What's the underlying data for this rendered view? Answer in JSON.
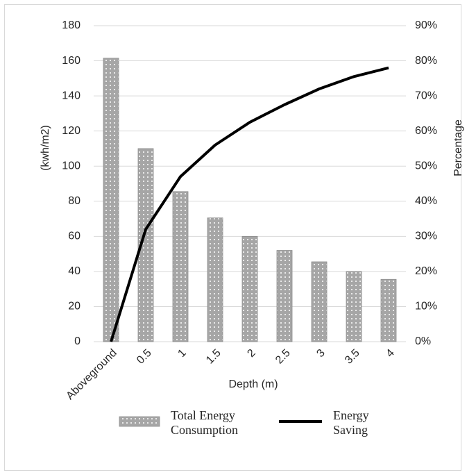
{
  "chart_data": {
    "type": "bar",
    "categories": [
      "Aboveground",
      "0.5",
      "1",
      "1.5",
      "2",
      "2.5",
      "3",
      "3.5",
      "4"
    ],
    "x_label": "Depth (m)",
    "y_label": "(kwh/m2)",
    "y2_label": "Percentage",
    "series": [
      {
        "name": "Total Energy Consumption",
        "type": "bar",
        "color": "#a6a6a6",
        "values": [
          161.5,
          110,
          85.5,
          70.5,
          60,
          52,
          45.5,
          40,
          35.5
        ]
      },
      {
        "name": "Energy Saving",
        "type": "line",
        "color": "#000000",
        "axis": "y2",
        "values": [
          0,
          32,
          47,
          56,
          62.5,
          67.5,
          72,
          75.5,
          78
        ]
      }
    ],
    "ylim": [
      0,
      180
    ],
    "yticks": [
      0,
      20,
      40,
      60,
      80,
      100,
      120,
      140,
      160,
      180
    ],
    "y2lim": [
      0,
      90
    ],
    "y2ticks": [
      {
        "value": 0,
        "label": "0%"
      },
      {
        "value": 10,
        "label": "10%"
      },
      {
        "value": 20,
        "label": "20%"
      },
      {
        "value": 30,
        "label": "30%"
      },
      {
        "value": 40,
        "label": "40%"
      },
      {
        "value": 50,
        "label": "50%"
      },
      {
        "value": 60,
        "label": "60%"
      },
      {
        "value": 70,
        "label": "70%"
      },
      {
        "value": 80,
        "label": "80%"
      },
      {
        "value": 90,
        "label": "90%"
      }
    ],
    "grid": true,
    "legend": "bottom"
  }
}
